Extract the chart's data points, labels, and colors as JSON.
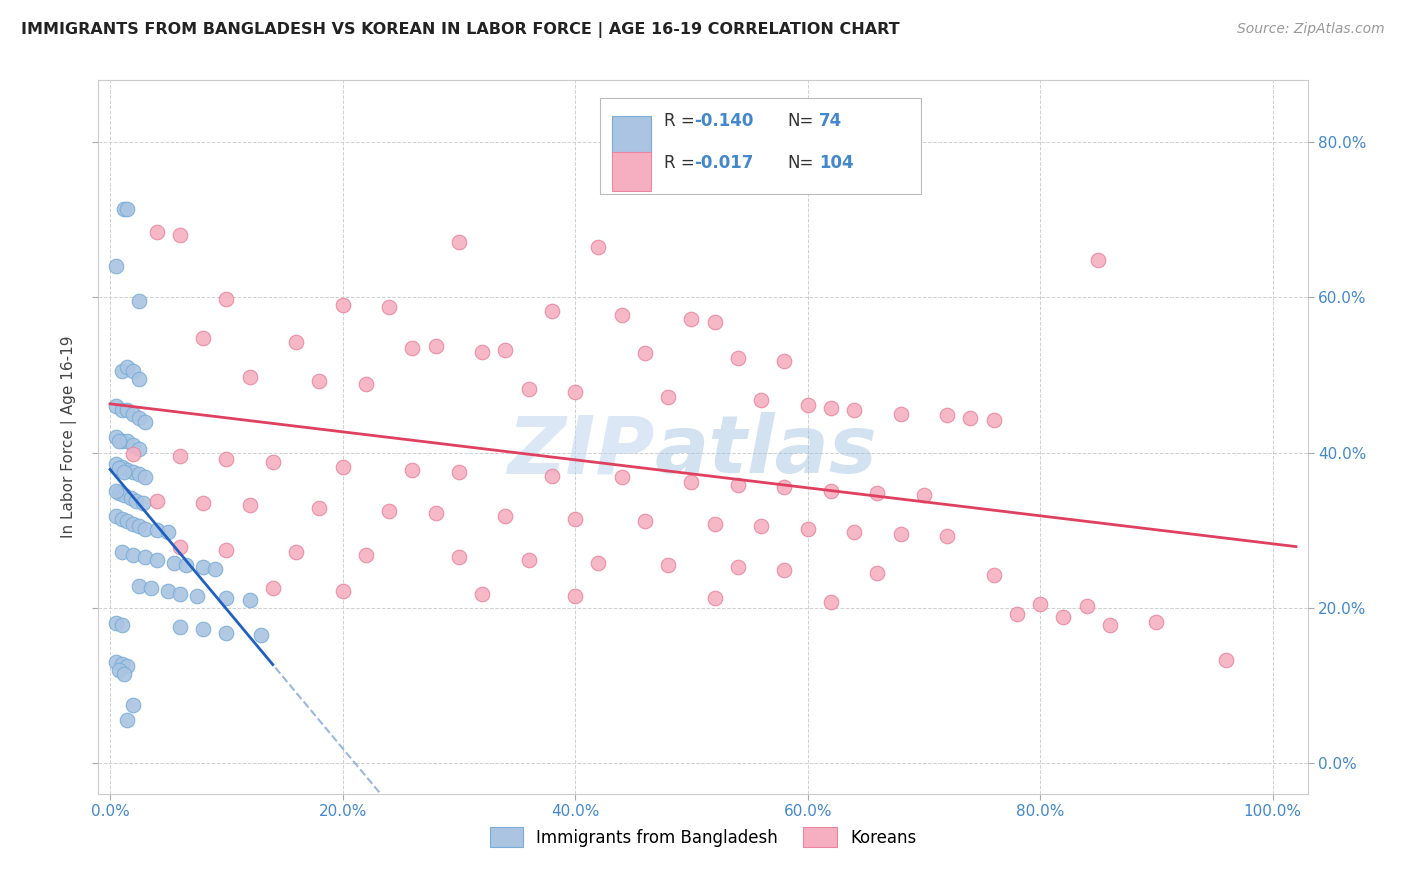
{
  "title": "IMMIGRANTS FROM BANGLADESH VS KOREAN IN LABOR FORCE | AGE 16-19 CORRELATION CHART",
  "source": "Source: ZipAtlas.com",
  "ylabel": "In Labor Force | Age 16-19",
  "x_tick_labels": [
    "0.0%",
    "20.0%",
    "40.0%",
    "60.0%",
    "80.0%",
    "100.0%"
  ],
  "x_tick_vals": [
    0.0,
    0.2,
    0.4,
    0.6,
    0.8,
    1.0
  ],
  "y_tick_labels": [
    "0.0%",
    "20.0%",
    "40.0%",
    "60.0%",
    "80.0%"
  ],
  "y_tick_vals": [
    0.0,
    0.2,
    0.4,
    0.6,
    0.8
  ],
  "xlim": [
    -0.01,
    1.03
  ],
  "ylim": [
    -0.04,
    0.88
  ],
  "r_bangladesh": -0.14,
  "n_bangladesh": 74,
  "r_korean": -0.017,
  "n_korean": 104,
  "bangladesh_color": "#aac4e2",
  "korean_color": "#f5afc0",
  "bangladesh_edge": "#7aaed8",
  "korean_edge": "#e888a0",
  "trend_bangladesh_color": "#2060c0",
  "trend_korean_color": "#e04060",
  "watermark_zip": "ZIP",
  "watermark_atlas": "atlas",
  "background_color": "#ffffff",
  "legend_bangladesh": "Immigrants from Bangladesh",
  "legend_korean": "Koreans",
  "grid_color": "#d0d0d0",
  "tick_color": "#4488cc",
  "title_color": "#222222",
  "ylabel_color": "#444444"
}
